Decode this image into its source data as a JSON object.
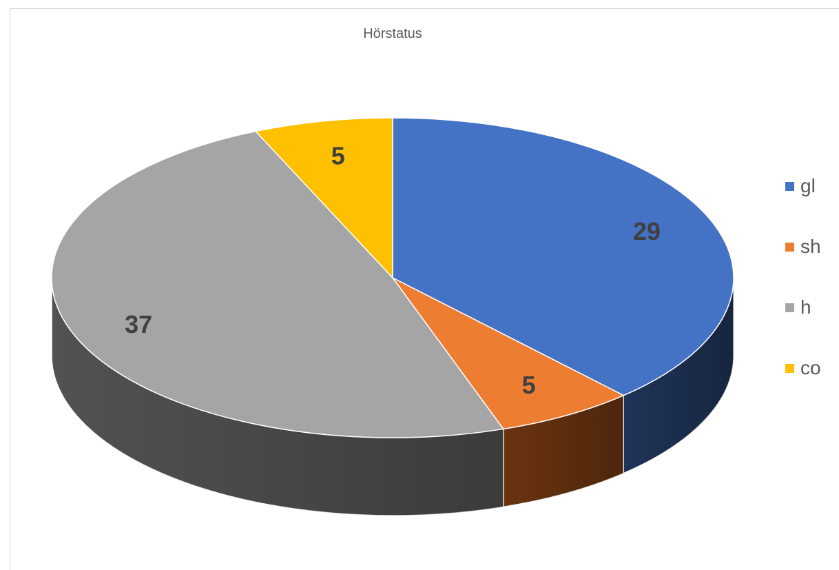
{
  "chart_data": {
    "type": "pie",
    "title": "Hörstatus",
    "categories": [
      "gl",
      "sh",
      "h",
      "co"
    ],
    "values": [
      29,
      5,
      37,
      5
    ],
    "colors": [
      "#4472C4",
      "#ED7D31",
      "#A5A5A5",
      "#FFC000"
    ],
    "side_colors": [
      "#1F3458",
      "#6B3410",
      "#525252",
      "#7F6000"
    ],
    "data_labels": [
      "29",
      "5",
      "37",
      "5"
    ],
    "legend": {
      "position": "right",
      "entries": [
        "gl",
        "sh",
        "h",
        "co"
      ]
    },
    "style": "3d"
  }
}
